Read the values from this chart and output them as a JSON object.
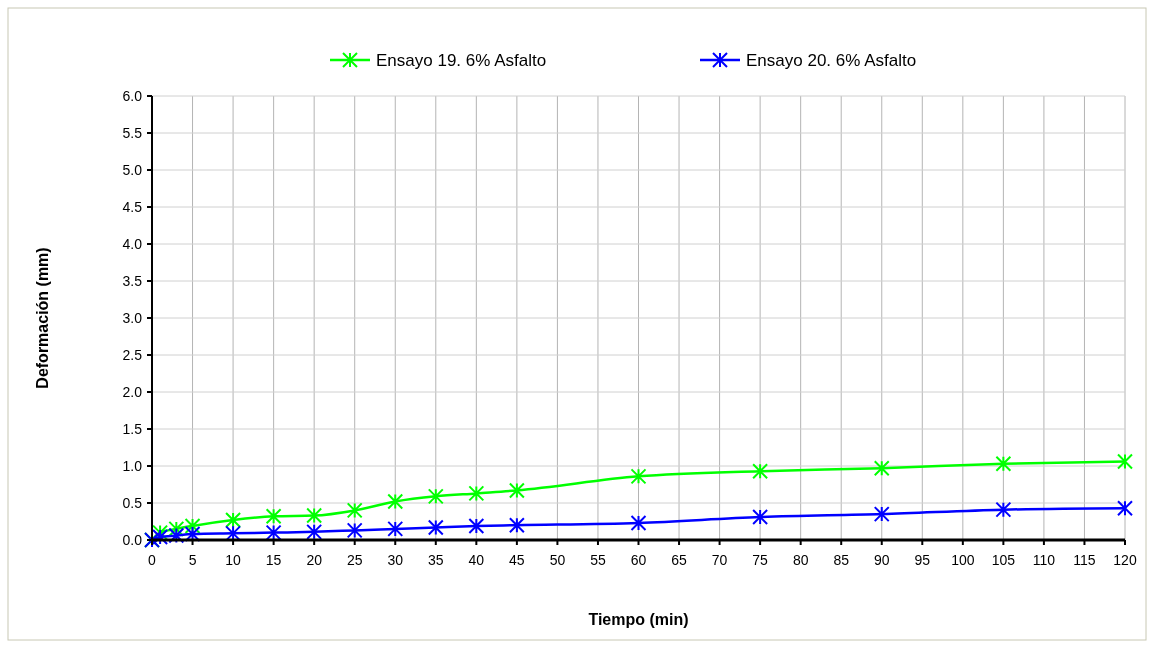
{
  "chart_data": {
    "type": "line",
    "xlabel": "Tiempo (min)",
    "ylabel": "Deformación (mm)",
    "x": [
      0,
      1,
      3,
      5,
      10,
      15,
      20,
      25,
      30,
      35,
      40,
      45,
      60,
      75,
      90,
      105,
      120
    ],
    "series": [
      {
        "name": "Ensayo 19. 6% Asfalto",
        "color": "#00ff00",
        "values": [
          0.0,
          0.1,
          0.15,
          0.19,
          0.27,
          0.32,
          0.33,
          0.4,
          0.52,
          0.59,
          0.63,
          0.67,
          0.86,
          0.93,
          0.97,
          1.03,
          1.06
        ]
      },
      {
        "name": "Ensayo 20. 6% Asfalto",
        "color": "#0000ff",
        "values": [
          0.0,
          0.04,
          0.06,
          0.08,
          0.09,
          0.1,
          0.11,
          0.13,
          0.15,
          0.17,
          0.19,
          0.2,
          0.23,
          0.31,
          0.35,
          0.41,
          0.43
        ]
      }
    ],
    "xlim": [
      0,
      120
    ],
    "xticks": [
      0,
      5,
      10,
      15,
      20,
      25,
      30,
      35,
      40,
      45,
      50,
      55,
      60,
      65,
      70,
      75,
      80,
      85,
      90,
      95,
      100,
      105,
      110,
      115,
      120
    ],
    "ylim": [
      0,
      6
    ],
    "yticks": [
      {
        "value": 0,
        "label": "0.0"
      },
      {
        "value": 0.5,
        "label": "0.5"
      },
      {
        "value": 1,
        "label": "1.0"
      },
      {
        "value": 1.5,
        "label": "1.5"
      },
      {
        "value": 2,
        "label": "2.0"
      },
      {
        "value": 2.5,
        "label": "2.5"
      },
      {
        "value": 3,
        "label": "3.0"
      },
      {
        "value": 3.5,
        "label": "3.5"
      },
      {
        "value": 4,
        "label": "4.0"
      },
      {
        "value": 4.5,
        "label": "4.5"
      },
      {
        "value": 5,
        "label": "5.0"
      },
      {
        "value": 5.5,
        "label": "5.5"
      },
      {
        "value": 6,
        "label": "6.0"
      }
    ],
    "grid": true,
    "legend": "top",
    "marker": "cross",
    "line_style": "solid"
  }
}
